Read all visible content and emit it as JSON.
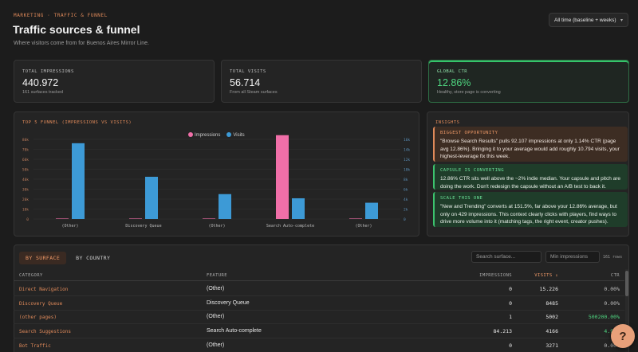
{
  "header": {
    "breadcrumb": "MARKETING · TRAFFIC & FUNNEL",
    "title": "Traffic sources & funnel",
    "subtitle": "Where visitors come from for Buenos Aires Mirror Line.",
    "range_select": "All time (baseline + weeks)"
  },
  "kpis": [
    {
      "label": "TOTAL IMPRESSIONS",
      "value": "440.972",
      "sub": "161 surfaces tracked"
    },
    {
      "label": "TOTAL VISITS",
      "value": "56.714",
      "sub": "From all Steam surfaces"
    },
    {
      "label": "GLOBAL CTR",
      "value": "12.86%",
      "sub": "Healthy, store page is converting"
    }
  ],
  "chart_panel_title": "TOP 5 FUNNEL (IMPRESSIONS VS VISITS)",
  "chart_data": {
    "type": "bar",
    "categories": [
      "(Other)",
      "Discovery Queue",
      "(Other)",
      "Search Auto-complete",
      "(Other)"
    ],
    "series": [
      {
        "name": "Impressions",
        "color": "#f06fa8",
        "axis": "left",
        "values": [
          0,
          0,
          1,
          84213,
          0
        ]
      },
      {
        "name": "Visits",
        "color": "#3d9ad6",
        "axis": "right",
        "values": [
          15226,
          8485,
          5002,
          4166,
          3271
        ]
      }
    ],
    "y_left": {
      "ticks": [
        "0",
        "10k",
        "20k",
        "30k",
        "40k",
        "50k",
        "60k",
        "70k",
        "80k"
      ],
      "max": 80000
    },
    "y_right": {
      "ticks": [
        "0",
        "2k",
        "4k",
        "6k",
        "8k",
        "10k",
        "12k",
        "14k",
        "16k"
      ],
      "max": 16000
    },
    "legend_position": "top-center",
    "grid": true
  },
  "insights_title": "INSIGHTS",
  "insights": [
    {
      "title": "BIGGEST OPPORTUNITY",
      "text": "\"Browse Search Results\" pulls 92.107 impressions at only 1.14% CTR (page avg 12.86%). Bringing it to your average would add roughly 10.794 visits, your highest-leverage fix this week."
    },
    {
      "title": "CAPSULE IS CONVERTING",
      "text": "12.86% CTR sits well above the ~2% indie median. Your capsule and pitch are doing the work. Don't redesign the capsule without an A/B test to back it."
    },
    {
      "title": "SCALE THIS ONE",
      "text": "\"New and Trending\" converts at 151.5%, far above your 12.86% average, but only on 429 impressions. This context clearly clicks with players, find ways to drive more volume into it (matching tags, the right event, creator pushes)."
    }
  ],
  "tabs": [
    "BY SURFACE",
    "BY COUNTRY"
  ],
  "search": {
    "placeholder": "Search surface..."
  },
  "min_impressions": {
    "placeholder": "Min impressions"
  },
  "row_count": "161 rows",
  "table": {
    "headers": {
      "category": "CATEGORY",
      "feature": "FEATURE",
      "impressions": "IMPRESSIONS",
      "visits": "VISITS ↓",
      "ctr": "CTR"
    },
    "rows": [
      {
        "category": "Direct Navigation",
        "feature": "(Other)",
        "impressions": "0",
        "visits": "15.226",
        "ctr": "0.00%"
      },
      {
        "category": "Discovery Queue",
        "feature": "Discovery Queue",
        "impressions": "0",
        "visits": "8485",
        "ctr": "0.00%"
      },
      {
        "category": "(other pages)",
        "feature": "(Other)",
        "impressions": "1",
        "visits": "5002",
        "ctr": "500200.00%"
      },
      {
        "category": "Search Suggestions",
        "feature": "Search Auto-complete",
        "impressions": "84.213",
        "visits": "4166",
        "ctr": "4.95%"
      },
      {
        "category": "Bot Traffic",
        "feature": "(Other)",
        "impressions": "0",
        "visits": "3271",
        "ctr": "0.00%"
      }
    ]
  },
  "help_label": "?"
}
